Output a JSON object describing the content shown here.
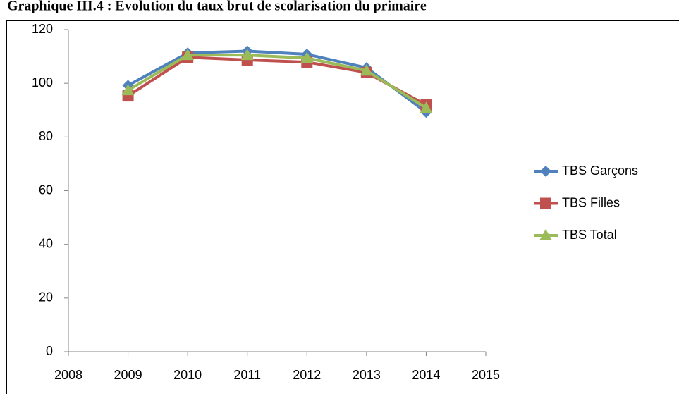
{
  "chart_data": {
    "type": "line",
    "title": "Graphique III.4 : Evolution du taux brut de scolarisation du primaire",
    "x": [
      2009,
      2010,
      2011,
      2012,
      2013,
      2014
    ],
    "series": [
      {
        "name": "TBS Garçons",
        "color": "#4f81bd",
        "marker": "diamond",
        "values": [
          99.2,
          111.3,
          112,
          110.8,
          105.8,
          89.2
        ]
      },
      {
        "name": "TBS Filles",
        "color": "#c0504d",
        "marker": "square",
        "values": [
          95.3,
          109.7,
          108.7,
          107.9,
          104,
          91.9
        ]
      },
      {
        "name": "TBS Total",
        "color": "#9bbb59",
        "marker": "triangle",
        "values": [
          97.4,
          110.5,
          110.5,
          109.4,
          104.7,
          90.8
        ]
      }
    ],
    "xlim": [
      2008,
      2015
    ],
    "xticks": [
      2008,
      2009,
      2010,
      2011,
      2012,
      2013,
      2014,
      2015
    ],
    "ylim": [
      0,
      120
    ],
    "yticks": [
      0,
      20,
      40,
      60,
      80,
      100,
      120
    ],
    "grid": false,
    "legend": "right"
  }
}
